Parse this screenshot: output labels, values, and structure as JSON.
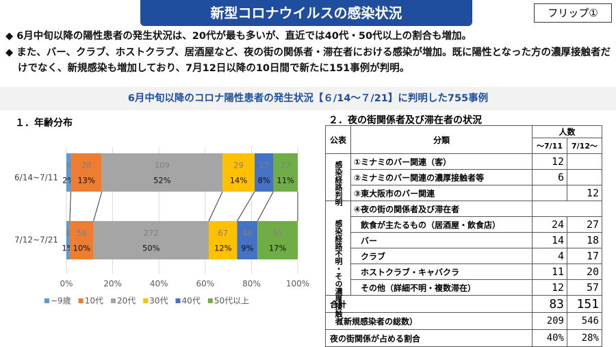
{
  "header": {
    "title": "新型コロナウイルスの感染状況",
    "badge": "フリップ①"
  },
  "bullets": [
    "6月中旬以降の陽性患者の発生状況は、20代が最も多いが、直近では40代・50代以上の割合も増加。",
    "また、バー、クラブ、ホストクラブ、居酒屋など、夜の街の関係者・滞在者における感染が増加。既に陽性となった方の濃厚接触者だけでなく、新規感染も増加しており、7月12日以降の10日間で新たに151事例が判明。"
  ],
  "subtitle": "6月中旬以降のコロナ陽性患者の発生状況【６/14～７/21】に判明した755事例",
  "chart_data": {
    "type": "stacked-bar-100",
    "title": "１．年齢分布",
    "categories": [
      "6/14~7/11",
      "7/12~7/21"
    ],
    "series": [
      {
        "name": "~9歳",
        "color": "#5b9bd5",
        "values": [
          4,
          8
        ],
        "percents": [
          2,
          1
        ],
        "percent_labels": [
          "2%",
          "1%"
        ]
      },
      {
        "name": "10代",
        "color": "#ed7d31",
        "values": [
          28,
          56
        ],
        "percents": [
          13,
          10
        ],
        "percent_labels": [
          "13%",
          "10%"
        ]
      },
      {
        "name": "20代",
        "color": "#a5a5a5",
        "values": [
          109,
          272
        ],
        "percents": [
          52,
          50
        ],
        "percent_labels": [
          "52%",
          "50%"
        ]
      },
      {
        "name": "30代",
        "color": "#ffc000",
        "values": [
          29,
          67
        ],
        "percents": [
          14,
          12
        ],
        "percent_labels": [
          "14%",
          "12%"
        ]
      },
      {
        "name": "40代",
        "color": "#4472c4",
        "values": [
          17,
          48
        ],
        "percents": [
          8,
          9
        ],
        "percent_labels": [
          "8%",
          "9%"
        ]
      },
      {
        "name": "50代以上",
        "color": "#70ad47",
        "values": [
          22,
          95
        ],
        "percents": [
          11,
          17
        ],
        "percent_labels": [
          "11%",
          "17%"
        ]
      }
    ],
    "xlim": [
      0,
      100
    ],
    "xticks": [
      {
        "value": 0,
        "label": "0%"
      },
      {
        "value": 20,
        "label": "20%"
      },
      {
        "value": 40,
        "label": "40%"
      },
      {
        "value": 60,
        "label": "60%"
      },
      {
        "value": 80,
        "label": "80%"
      },
      {
        "value": 100,
        "label": "100%"
      }
    ],
    "legend": "bottom"
  },
  "table": {
    "title": "２．夜の街関係者及び滞在者の状況",
    "headers": {
      "group": "公表",
      "category": "分類",
      "count": "人数",
      "col1": "～7/11",
      "col2": "7/12～"
    },
    "groups": [
      {
        "label": "感染経路判明",
        "rows": 3
      },
      {
        "label": "感染経路不明・その濃厚接触者",
        "rows": 6
      }
    ],
    "rows": [
      {
        "label": "①ミナミのバー関連（客）",
        "values": [
          12,
          null
        ]
      },
      {
        "label": "②ミナミのバー関連の濃厚接触者等",
        "values": [
          6,
          null
        ]
      },
      {
        "label": "③東大阪市のバー関連",
        "values": [
          null,
          12
        ]
      },
      {
        "label": "④夜の街の関係者及び滞在者",
        "values": [
          null,
          null
        ]
      },
      {
        "label": "飲食が主たるもの（居酒屋・飲食店）",
        "values": [
          24,
          27
        ]
      },
      {
        "label": "バー",
        "values": [
          14,
          18
        ]
      },
      {
        "label": "クラブ",
        "values": [
          4,
          17
        ]
      },
      {
        "label": "ホストクラブ・キャバクラ",
        "values": [
          11,
          20
        ]
      },
      {
        "label": "その他（詳細不明・複数滞在）",
        "values": [
          12,
          57
        ]
      }
    ],
    "totals": [
      {
        "label": "合計",
        "values": [
          83,
          151
        ]
      },
      {
        "label": "（新規感染者の総数）",
        "values": [
          209,
          546
        ]
      },
      {
        "label": "夜の街関係が占める割合",
        "values": [
          "40%",
          "28%"
        ]
      }
    ]
  }
}
